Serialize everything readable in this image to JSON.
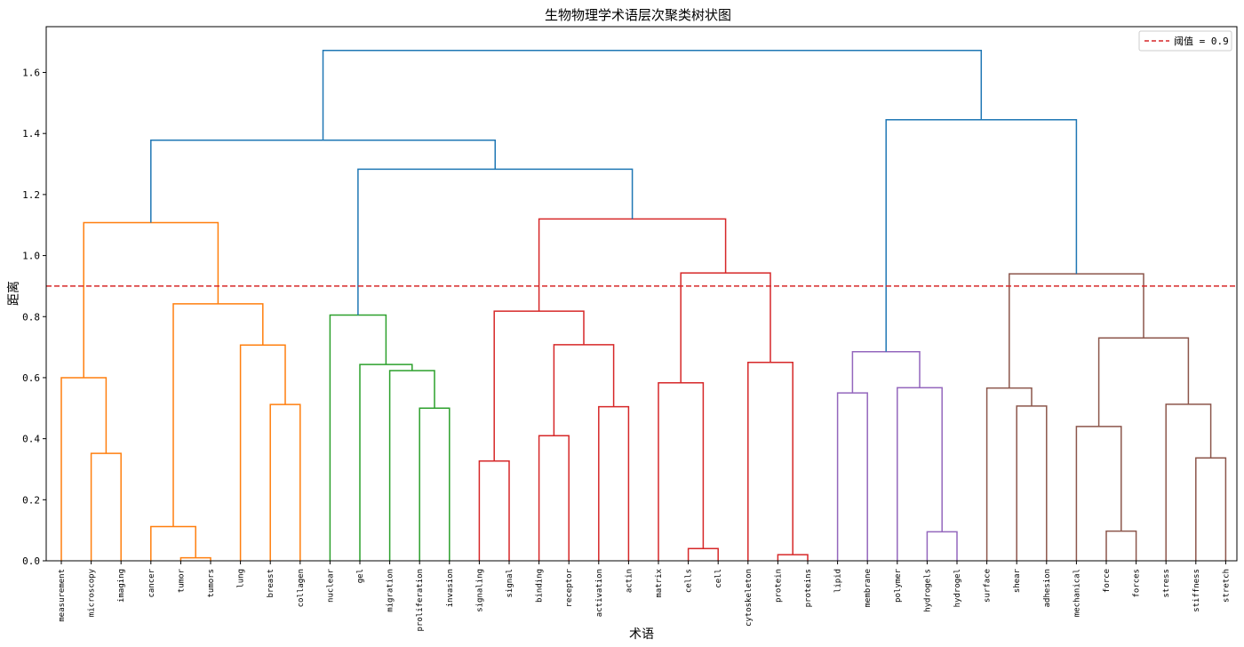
{
  "chart_data": {
    "type": "dendrogram",
    "title": "生物物理学术语层次聚类树状图",
    "xlabel": "术语",
    "ylabel": "距离",
    "ylim": [
      0,
      1.75
    ],
    "yticks": [
      0.0,
      0.2,
      0.4,
      0.6,
      0.8,
      1.0,
      1.2,
      1.4,
      1.6
    ],
    "grid": false,
    "legend": {
      "position": "top-right",
      "entries": [
        {
          "label": "阈值 = 0.9",
          "color": "#d62728",
          "style": "dashed"
        }
      ]
    },
    "threshold": 0.9,
    "colors": {
      "above": "#1f77b4",
      "orange": "#ff7f0e",
      "green": "#2ca02c",
      "red": "#d62728",
      "purple": "#9467bd",
      "brown": "#8c564b"
    },
    "leaves": [
      "measurement",
      "microscopy",
      "imaging",
      "cancer",
      "tumor",
      "tumors",
      "lung",
      "breast",
      "collagen",
      "nuclear",
      "gel",
      "migration",
      "proliferation",
      "invasion",
      "signaling",
      "signal",
      "binding",
      "receptor",
      "activation",
      "actin",
      "matrix",
      "cells",
      "cell",
      "cytoskeleton",
      "protein",
      "proteins",
      "lipid",
      "membrane",
      "polymer",
      "hydrogels",
      "hydrogel",
      "surface",
      "shear",
      "adhesion",
      "mechanical",
      "force",
      "forces",
      "stress",
      "stiffness",
      "stretch"
    ],
    "merges": [
      {
        "a": "L4",
        "b": "L5",
        "height": 0.01,
        "color": "orange"
      },
      {
        "a": "L24",
        "b": "L25",
        "height": 0.02,
        "color": "red"
      },
      {
        "a": "L21",
        "b": "L22",
        "height": 0.04,
        "color": "red"
      },
      {
        "a": "L29",
        "b": "L30",
        "height": 0.095,
        "color": "purple"
      },
      {
        "a": "L35",
        "b": "L36",
        "height": 0.097,
        "color": "brown"
      },
      {
        "a": "L3",
        "b": "N0",
        "height": 0.112,
        "color": "orange"
      },
      {
        "a": "L14",
        "b": "L15",
        "height": 0.327,
        "color": "red"
      },
      {
        "a": "L38",
        "b": "L39",
        "height": 0.337,
        "color": "brown"
      },
      {
        "a": "L1",
        "b": "L2",
        "height": 0.352,
        "color": "orange"
      },
      {
        "a": "L16",
        "b": "L17",
        "height": 0.41,
        "color": "red"
      },
      {
        "a": "L34",
        "b": "N4",
        "height": 0.44,
        "color": "brown"
      },
      {
        "a": "L12",
        "b": "L13",
        "height": 0.5,
        "color": "green"
      },
      {
        "a": "L19_pair",
        "b": "",
        "height": 0.0,
        "color": "none"
      },
      {
        "a": "L18",
        "b": "L19",
        "height": 0.505,
        "color": "red"
      },
      {
        "a": "L32",
        "b": "L33",
        "height": 0.507,
        "color": "brown"
      },
      {
        "a": "L7",
        "b": "L8",
        "height": 0.512,
        "color": "orange"
      },
      {
        "a": "L37",
        "b": "N7",
        "height": 0.513,
        "color": "brown"
      },
      {
        "a": "L26",
        "b": "L27",
        "height": 0.55,
        "color": "purple"
      },
      {
        "a": "L31",
        "b": "N14",
        "height": 0.566,
        "color": "brown"
      },
      {
        "a": "L28",
        "b": "N3",
        "height": 0.567,
        "color": "purple"
      },
      {
        "a": "L20",
        "b": "N2",
        "height": 0.583,
        "color": "red"
      },
      {
        "a": "L0",
        "b": "N8",
        "height": 0.6,
        "color": "orange"
      },
      {
        "a": "L11",
        "b": "N11",
        "height": 0.623,
        "color": "green"
      },
      {
        "a": "L10",
        "b": "N22",
        "height": 0.643,
        "color": "green"
      },
      {
        "a": "L23",
        "b": "N1",
        "height": 0.65,
        "color": "red"
      },
      {
        "a": "N17",
        "b": "N19",
        "height": 0.685,
        "color": "purple"
      },
      {
        "a": "L6",
        "b": "N15",
        "height": 0.707,
        "color": "orange"
      },
      {
        "a": "N9",
        "b": "N13",
        "height": 0.708,
        "color": "red"
      },
      {
        "a": "N10",
        "b": "N16",
        "height": 0.73,
        "color": "brown"
      },
      {
        "a": "L9",
        "b": "N23",
        "height": 0.805,
        "color": "green"
      },
      {
        "a": "N6",
        "b": "N27",
        "height": 0.818,
        "color": "red"
      },
      {
        "a": "N5",
        "b": "N26",
        "height": 0.842,
        "color": "orange"
      },
      {
        "a": "N20",
        "b": "N24",
        "height": 0.943,
        "color": "red"
      },
      {
        "a": "N18",
        "b": "N28",
        "height": 0.94,
        "color": "brown"
      },
      {
        "a": "N21",
        "b": "N31",
        "height": 1.108,
        "color": "orange"
      },
      {
        "a": "N30",
        "b": "N32",
        "height": 1.12,
        "color": "red"
      },
      {
        "a": "N29",
        "b": "N35",
        "height": 1.283,
        "color": "above"
      },
      {
        "a": "N34",
        "b": "N36",
        "height": 1.378,
        "color": "above"
      },
      {
        "a": "N25",
        "b": "N33",
        "height": 1.445,
        "color": "above"
      },
      {
        "a": "N37",
        "b": "N38",
        "height": 1.672,
        "color": "above"
      }
    ]
  }
}
